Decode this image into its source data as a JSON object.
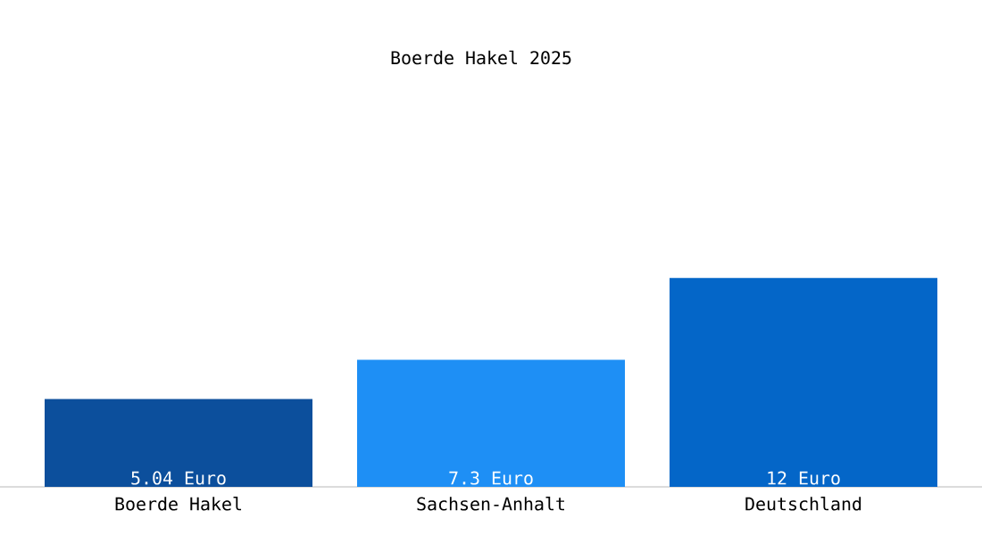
{
  "chart_data": {
    "type": "bar",
    "title": "Boerde Hakel 2025",
    "categories": [
      "Boerde Hakel",
      "Sachsen-Anhalt",
      "Deutschland"
    ],
    "values": [
      5.04,
      7.3,
      12
    ],
    "colors": [
      "#0c4f9c",
      "#1e8ff5",
      "#0466c8"
    ],
    "value_labels": [
      "5.04 Euro",
      "7.3 Euro",
      "12 Euro"
    ]
  }
}
